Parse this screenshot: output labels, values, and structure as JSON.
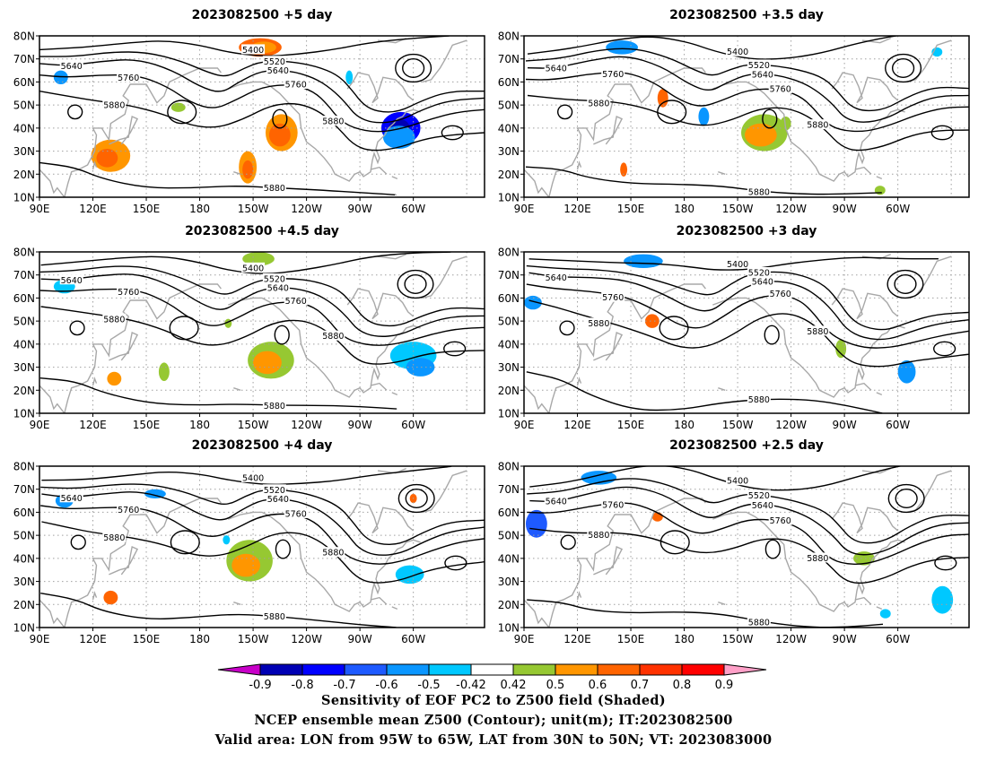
{
  "panels": [
    {
      "title": "2023082500 +5 day"
    },
    {
      "title": "2023082500 +3.5 day"
    },
    {
      "title": "2023082500 +4.5 day"
    },
    {
      "title": "2023082500 +3 day"
    },
    {
      "title": "2023082500 +4 day"
    },
    {
      "title": "2023082500 +2.5 day"
    }
  ],
  "axes": {
    "lat_ticks": [
      "80N",
      "70N",
      "60N",
      "50N",
      "40N",
      "30N",
      "20N",
      "10N"
    ],
    "lon_ticks": [
      "90E",
      "120E",
      "150E",
      "180",
      "150W",
      "120W",
      "90W",
      "60W"
    ],
    "lon_range_deg_east": [
      90,
      340
    ],
    "lat_range": [
      10,
      80
    ],
    "grid": "dotted"
  },
  "contour_labels": [
    "5400",
    "5520",
    "5640",
    "5760",
    "5880"
  ],
  "colorbar": {
    "labels": [
      "-0.9",
      "-0.8",
      "-0.7",
      "-0.6",
      "-0.5",
      "-0.42",
      "0.42",
      "0.5",
      "0.6",
      "0.7",
      "0.8",
      "0.9"
    ],
    "colors": [
      "#0000b4",
      "#0000ff",
      "#1e5aff",
      "#0a96ff",
      "#00c8ff",
      "#ffffff",
      "#96c832",
      "#ff9600",
      "#ff6400",
      "#ff3200",
      "#ff0000"
    ],
    "low_extend_color": "#c800c8",
    "high_extend_color": "#ffa0c8"
  },
  "footer": {
    "line1": "Sensitivity of EOF PC2 to Z500 field (Shaded)",
    "line2": "NCEP ensemble mean Z500 (Contour); unit(m); IT:2023082500",
    "line3": "Valid area: LON from 95W to 65W, LAT from 30N to 50N; VT: 2023083000"
  }
}
